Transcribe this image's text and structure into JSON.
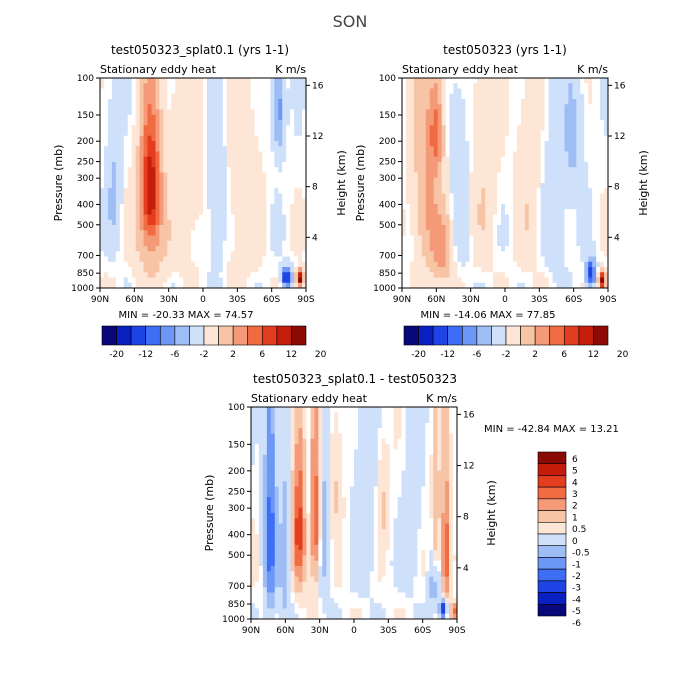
{
  "suptitle": "SON",
  "colors": {
    "negative": [
      "#08087a",
      "#0a1fbf",
      "#1f44e6",
      "#3d6ef5",
      "#6d97f5",
      "#9fbdf5",
      "#cfe0fb"
    ],
    "positive": [
      "#fde6d6",
      "#f8c4a6",
      "#f59a78",
      "#f06a42",
      "#e43c1e",
      "#c41d0a",
      "#8c0a06"
    ],
    "neutral": "#ffffff"
  },
  "chart_data": [
    {
      "id": "top-left",
      "type": "heatmap",
      "title": "test050323_splat0.1 (yrs 1-1)",
      "left_label": "Stationary eddy heat",
      "right_label": "K m/s",
      "ylabel": "Pressure (mb)",
      "ylabel_right": "Height (km)",
      "xticks": [
        "90N",
        "60N",
        "30N",
        "0",
        "30S",
        "60S",
        "90S"
      ],
      "yticks": [
        100,
        150,
        200,
        250,
        300,
        400,
        500,
        700,
        850,
        1000
      ],
      "yticks_right": [
        4,
        8,
        12,
        16
      ],
      "stats_text": "MIN = -20.33   MAX =  74.57",
      "cb_labels": [
        "-20",
        "-12",
        "-6",
        "-2",
        "2",
        "6",
        "12",
        "20"
      ],
      "features": [
        {
          "lat": 46,
          "p": 330,
          "w": 9,
          "h": 230,
          "v": 5.5
        },
        {
          "lat": 45,
          "p": 650,
          "w": 14,
          "h": 300,
          "v": 1.6
        },
        {
          "lat": 78,
          "p": 350,
          "w": 6,
          "h": 250,
          "v": -1.2
        },
        {
          "lat": 15,
          "p": 300,
          "w": 14,
          "h": 450,
          "v": 0.8
        },
        {
          "lat": -12,
          "p": 400,
          "w": 8,
          "h": 350,
          "v": -1.0
        },
        {
          "lat": -35,
          "p": 450,
          "w": 15,
          "h": 500,
          "v": 0.7
        },
        {
          "lat": -66,
          "p": 140,
          "w": 5,
          "h": 80,
          "v": -2.5
        },
        {
          "lat": -73,
          "p": 890,
          "w": 4,
          "h": 90,
          "v": -6.0
        },
        {
          "lat": -85,
          "p": 900,
          "w": 3,
          "h": 80,
          "v": 7.0
        }
      ]
    },
    {
      "id": "top-right",
      "type": "heatmap",
      "title": "test050323 (yrs 1-1)",
      "left_label": "Stationary eddy heat",
      "right_label": "K m/s",
      "ylabel": "Pressure (mb)",
      "ylabel_right": "Height (km)",
      "xticks": [
        "90N",
        "60N",
        "30N",
        "0",
        "30S",
        "60S",
        "90S"
      ],
      "yticks": [
        100,
        150,
        200,
        250,
        300,
        400,
        500,
        700,
        850,
        1000
      ],
      "yticks_right": [
        4,
        8,
        12,
        16
      ],
      "stats_text": "MIN = -14.06   MAX =  77.85",
      "cb_labels": [
        "-20",
        "-12",
        "-6",
        "-2",
        "2",
        "6",
        "12",
        "20"
      ],
      "features": [
        {
          "lat": 70,
          "p": 350,
          "w": 10,
          "h": 400,
          "v": 2.0
        },
        {
          "lat": 60,
          "p": 180,
          "w": 6,
          "h": 100,
          "v": 3.0
        },
        {
          "lat": 55,
          "p": 650,
          "w": 10,
          "h": 300,
          "v": 2.5
        },
        {
          "lat": 40,
          "p": 400,
          "w": 12,
          "h": 400,
          "v": -0.8
        },
        {
          "lat": 20,
          "p": 350,
          "w": 12,
          "h": 400,
          "v": 0.9
        },
        {
          "lat": -20,
          "p": 400,
          "w": 10,
          "h": 400,
          "v": 0.8
        },
        {
          "lat": -45,
          "p": 400,
          "w": 10,
          "h": 400,
          "v": -0.8
        },
        {
          "lat": -60,
          "p": 200,
          "w": 8,
          "h": 150,
          "v": -1.2
        },
        {
          "lat": -75,
          "p": 850,
          "w": 4,
          "h": 120,
          "v": -5.0
        },
        {
          "lat": -85,
          "p": 920,
          "w": 3,
          "h": 80,
          "v": 7.0
        }
      ]
    },
    {
      "id": "bottom",
      "type": "heatmap",
      "title": "test050323_splat0.1 - test050323",
      "left_label": "Stationary eddy heat",
      "right_label": "K m/s",
      "ylabel": "Pressure (mb)",
      "ylabel_right": "Height (km)",
      "xticks": [
        "90N",
        "60N",
        "30N",
        "0",
        "30S",
        "60S",
        "90S"
      ],
      "yticks": [
        100,
        150,
        200,
        250,
        300,
        400,
        500,
        700,
        850,
        1000
      ],
      "yticks_right": [
        4,
        8,
        12,
        16
      ],
      "stats_text": "MIN = -42.84   MAX =  13.21",
      "cb_labels": [
        "6",
        "5",
        "4",
        "3",
        "2",
        "1",
        "0.5",
        "0",
        "-0.5",
        "-1",
        "-2",
        "-3",
        "-4",
        "-5",
        "-6"
      ],
      "features": [
        {
          "lat": 73,
          "p": 400,
          "w": 5,
          "h": 500,
          "v": -3.5
        },
        {
          "lat": 60,
          "p": 550,
          "w": 5,
          "h": 400,
          "v": -2.0
        },
        {
          "lat": 48,
          "p": 380,
          "w": 6,
          "h": 300,
          "v": 4.5
        },
        {
          "lat": 34,
          "p": 350,
          "w": 4,
          "h": 300,
          "v": 4.0
        },
        {
          "lat": 41,
          "p": 250,
          "w": 2,
          "h": 200,
          "v": -1.5
        },
        {
          "lat": 25,
          "p": 400,
          "w": 5,
          "h": 400,
          "v": -1.5
        },
        {
          "lat": 17,
          "p": 250,
          "w": 6,
          "h": 150,
          "v": 1.2
        },
        {
          "lat": -10,
          "p": 300,
          "w": 10,
          "h": 400,
          "v": -0.8
        },
        {
          "lat": -25,
          "p": 300,
          "w": 5,
          "h": 150,
          "v": 1.2
        },
        {
          "lat": -50,
          "p": 400,
          "w": 8,
          "h": 300,
          "v": -0.8
        },
        {
          "lat": -72,
          "p": 350,
          "w": 3,
          "h": 300,
          "v": 2.0
        },
        {
          "lat": -80,
          "p": 500,
          "w": 3,
          "h": 350,
          "v": 4.5
        },
        {
          "lat": -70,
          "p": 700,
          "w": 5,
          "h": 200,
          "v": -1.5
        },
        {
          "lat": -78,
          "p": 900,
          "w": 3,
          "h": 90,
          "v": -6.0
        },
        {
          "lat": -87,
          "p": 920,
          "w": 2,
          "h": 80,
          "v": 6.0
        }
      ]
    }
  ]
}
